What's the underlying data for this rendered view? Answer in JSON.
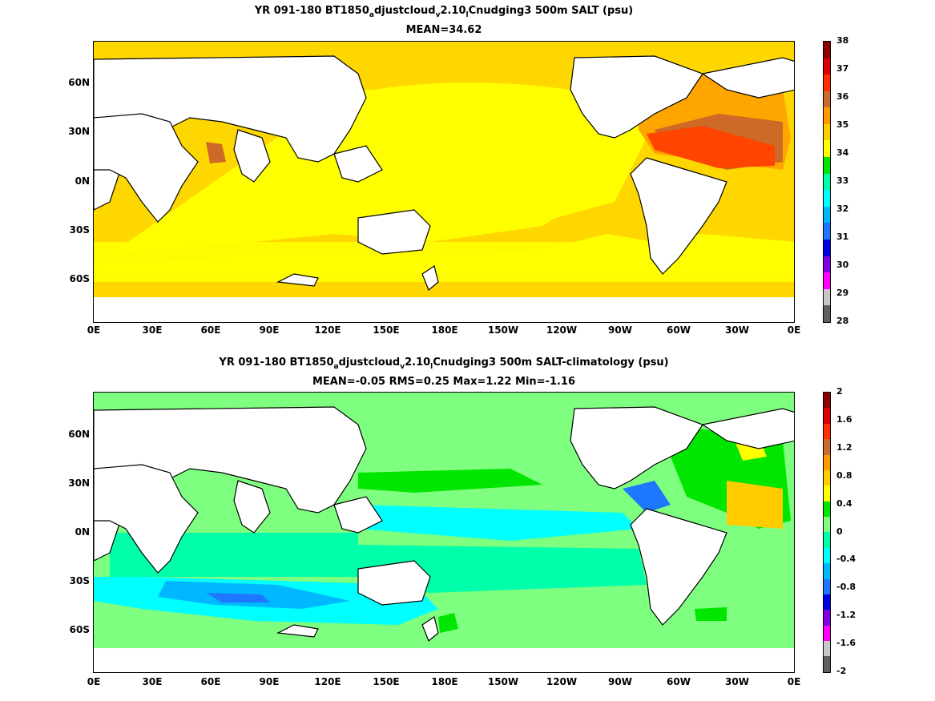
{
  "panels": [
    {
      "title_main": "YR 091-180 BT1850",
      "title_sub1": "a",
      "title_part2": "djustcloud",
      "title_sub2": "v",
      "title_part3": "2.10",
      "title_sub3": "l",
      "title_part4": "Cnudging3 500m SALT (psu)",
      "stats": "MEAN=34.62"
    },
    {
      "title_main": "YR 091-180 BT1850",
      "title_sub1": "a",
      "title_part2": "djustcloud",
      "title_sub2": "v",
      "title_part3": "2.10",
      "title_sub3": "l",
      "title_part4": "Cnudging3 500m SALT-climatology (psu)",
      "stats": "MEAN=-0.05   RMS=0.25   Max=1.22   Min=-1.16"
    }
  ],
  "lat_labels": [
    "60N",
    "30N",
    "0N",
    "30S",
    "60S"
  ],
  "lon_labels": [
    "0E",
    "30E",
    "60E",
    "90E",
    "120E",
    "150E",
    "180E",
    "150W",
    "120W",
    "90W",
    "60W",
    "30W",
    "0E"
  ],
  "colorbar1": {
    "ticks": [
      "38",
      "37",
      "36",
      "35",
      "34",
      "33",
      "32",
      "31",
      "30",
      "29",
      "28"
    ],
    "colors": [
      "#8b0000",
      "#dd0000",
      "#ff3000",
      "#cc6a28",
      "#ff9a00",
      "#ffcc00",
      "#ffff00",
      "#00e600",
      "#00ffaa",
      "#00ffff",
      "#00b8ff",
      "#1e78ff",
      "#0000e0",
      "#8000e0",
      "#ff00ff",
      "#c8c8c8",
      "#606060"
    ]
  },
  "colorbar2": {
    "ticks": [
      "2",
      "1.6",
      "1.2",
      "0.8",
      "0.4",
      "0",
      "-0.4",
      "-0.8",
      "-1.2",
      "-1.6",
      "-2"
    ],
    "colors": [
      "#8b0000",
      "#dd0000",
      "#ff3000",
      "#cc6a28",
      "#ff9a00",
      "#ffcc00",
      "#ffff00",
      "#00e600",
      "#7fff7f",
      "#00ffaa",
      "#00ffff",
      "#00b8ff",
      "#1e78ff",
      "#0000e0",
      "#8000e0",
      "#ff00ff",
      "#c8c8c8",
      "#606060"
    ]
  }
}
